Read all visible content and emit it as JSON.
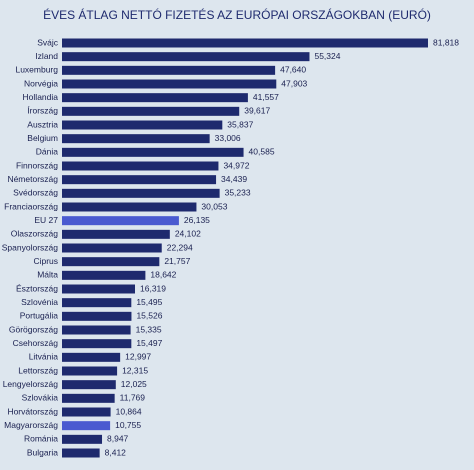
{
  "chart_data": {
    "type": "hbar",
    "title": "ÉVES ÁTLAG NETTÓ FIZETÉS AZ EURÓPAI ORSZÁGOKBAN (EURÓ)",
    "categories": [
      "Svájc",
      "Izland",
      "Luxemburg",
      "Norvégia",
      "Hollandia",
      "Írország",
      "Ausztria",
      "Belgium",
      "Dánia",
      "Finnország",
      "Németország",
      "Svédország",
      "Franciaország",
      "EU 27",
      "Olaszország",
      "Spanyolország",
      "Ciprus",
      "Málta",
      "Észtország",
      "Szlovénia",
      "Portugália",
      "Görögország",
      "Csehország",
      "Litvánia",
      "Lettország",
      "Lengyelország",
      "Szlovákia",
      "Horvátország",
      "Magyarország",
      "Románia",
      "Bulgaria"
    ],
    "values": [
      81818,
      55324,
      47640,
      47903,
      41557,
      39617,
      35837,
      33006,
      40585,
      34972,
      34439,
      35233,
      30053,
      26135,
      24102,
      22294,
      21757,
      18642,
      16319,
      15495,
      15526,
      15335,
      15497,
      12997,
      12315,
      12025,
      11769,
      10864,
      10755,
      8947,
      8412
    ],
    "value_labels": [
      "81,818",
      "55,324",
      "47,640",
      "47,903",
      "41,557",
      "39,617",
      "35,837",
      "33,006",
      "40,585",
      "34,972",
      "34,439",
      "35,233",
      "30,053",
      "26,135",
      "24,102",
      "22,294",
      "21,757",
      "18,642",
      "16,319",
      "15,495",
      "15,526",
      "15,335",
      "15,497",
      "12,997",
      "12,315",
      "12,025",
      "11,769",
      "10,864",
      "10,755",
      "8,947",
      "8,412"
    ],
    "colors": [
      "#1e2a6e",
      "#1e2a6e",
      "#1e2a6e",
      "#1e2a6e",
      "#1e2a6e",
      "#1e2a6e",
      "#1e2a6e",
      "#1e2a6e",
      "#1e2a6e",
      "#1e2a6e",
      "#1e2a6e",
      "#1e2a6e",
      "#1e2a6e",
      "#4a5ad0",
      "#1e2a6e",
      "#1e2a6e",
      "#1e2a6e",
      "#1e2a6e",
      "#1e2a6e",
      "#1e2a6e",
      "#1e2a6e",
      "#1e2a6e",
      "#1e2a6e",
      "#1e2a6e",
      "#1e2a6e",
      "#1e2a6e",
      "#1e2a6e",
      "#1e2a6e",
      "#4a5ad0",
      "#1e2a6e",
      "#1e2a6e"
    ]
  }
}
